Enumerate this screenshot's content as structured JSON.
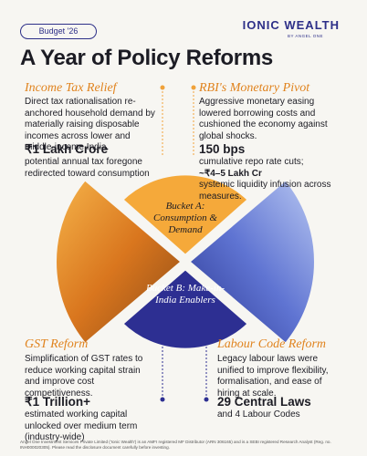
{
  "header": {
    "badge": "Budget '26",
    "brand": "IONIC WEALTH",
    "brand_sub": "BY ANGEL ONE"
  },
  "title": "A Year of Policy Reforms",
  "sections": [
    {
      "title": "Income Tax Relief",
      "description": "Direct tax rationalisation re-anchored household demand by materially raising disposable incomes across lower and middle-income India.",
      "stat": "₹1 Lakh Crore",
      "stat_desc": [
        "potential annual tax foregone redirected toward consumption"
      ]
    },
    {
      "title": "RBI's Monetary Pivot",
      "description": "Aggressive monetary easing lowered borrowing costs and cushioned the economy against global shocks.",
      "stat": "150 bps",
      "stat_desc": [
        "cumulative repo rate cuts;",
        "~₹4–5 Lakh Cr",
        "systemic liquidity infusion across measures."
      ]
    },
    {
      "title": "GST Reform",
      "description": "Simplification of GST rates to reduce working capital strain and improve cost competitiveness.",
      "stat": "₹1 Trillion+",
      "stat_desc": [
        "estimated working capital unlocked over medium term (industry-wide)"
      ]
    },
    {
      "title": "Labour Code Reform",
      "description": "Legacy labour laws were unified to improve flexibility, formalisation, and ease of hiring at scale.",
      "stat": "29 Central Laws",
      "stat_desc": [
        "and 4 Labour Codes"
      ]
    }
  ],
  "buckets": [
    "Bucket A: Consumption & Demand",
    "Bucket B: Make-in-India Enablers"
  ],
  "footer": "Angel One Investment Services Private Limited ('Ionic Wealth') is an AMFI registered MF Distributor (ARN 306165) and is a SEBI registered Research Analyst (Reg. no. INH000020305). Please read the disclosure document carefully before investing."
}
